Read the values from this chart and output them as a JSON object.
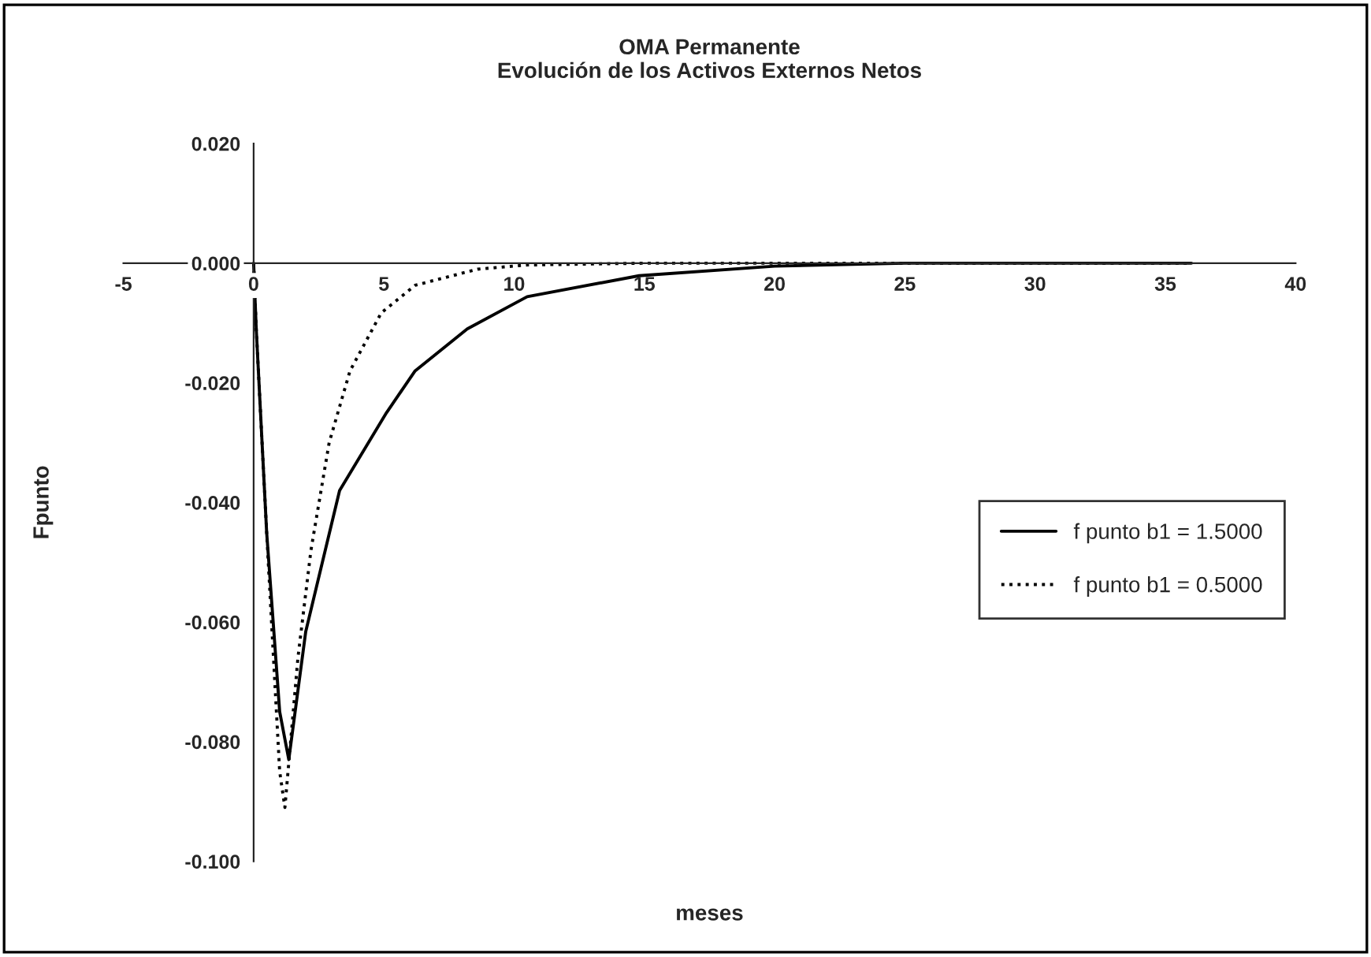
{
  "chart_data": {
    "type": "line",
    "title": "OMA Permanente\nEvolución de los Activos Externos Netos",
    "xlabel": "meses",
    "ylabel": "Fpunto",
    "series": [
      {
        "name": "f punto b1 = 1.5000",
        "color": "#000000",
        "line_style": "solid",
        "x": [
          0,
          0.1,
          0.5,
          1.0,
          1.35,
          2.0,
          3.3,
          5.1,
          6.2,
          8.2,
          10.5,
          14.8,
          20,
          25,
          30,
          36
        ],
        "values": [
          0,
          -0.011,
          -0.045,
          -0.075,
          -0.083,
          -0.0616,
          -0.038,
          -0.025,
          -0.018,
          -0.011,
          -0.0056,
          -0.0021,
          -0.0005,
          0,
          0,
          0
        ]
      },
      {
        "name": "f punto b1 = 0.5000",
        "color": "#000000",
        "line_style": "dotted",
        "x": [
          0,
          0.1,
          0.5,
          1.0,
          1.2,
          1.7,
          2.2,
          2.9,
          3.7,
          4.9,
          6.2,
          8.6,
          10.5,
          15,
          20,
          25,
          30,
          36
        ],
        "values": [
          0,
          -0.011,
          -0.045,
          -0.085,
          -0.091,
          -0.066,
          -0.048,
          -0.03,
          -0.018,
          -0.0083,
          -0.0037,
          -0.001,
          -0.0003,
          0,
          0,
          0,
          0,
          0
        ]
      }
    ],
    "xlim": [
      -5,
      40
    ],
    "xticks": [
      -5,
      0,
      5,
      10,
      15,
      20,
      25,
      30,
      35,
      40
    ],
    "ylim": [
      -0.1,
      0.02
    ],
    "yticks": [
      {
        "value": -0.1,
        "label": "-0.100"
      },
      {
        "value": -0.08,
        "label": "-0.080"
      },
      {
        "value": -0.06,
        "label": "-0.060"
      },
      {
        "value": -0.04,
        "label": "-0.040"
      },
      {
        "value": -0.02,
        "label": "-0.020"
      },
      {
        "value": 0,
        "label": "0.000"
      },
      {
        "value": 0.02,
        "label": "0.020"
      }
    ],
    "grid": false,
    "legend": "right"
  }
}
